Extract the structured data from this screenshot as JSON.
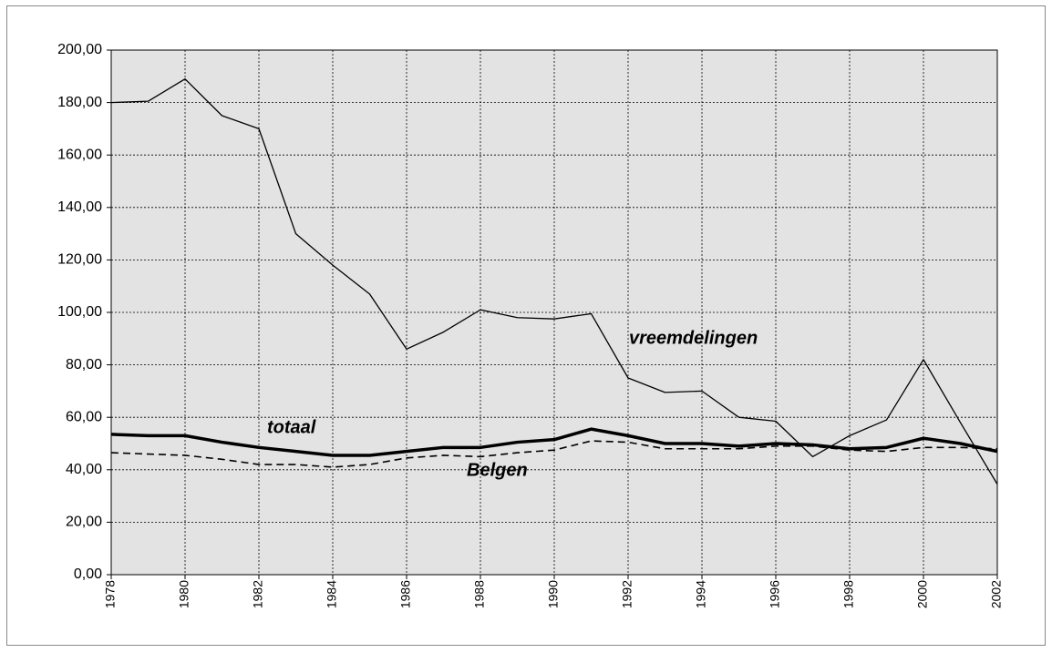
{
  "chart_data": {
    "type": "line",
    "x": [
      1978,
      1979,
      1980,
      1981,
      1982,
      1983,
      1984,
      1985,
      1986,
      1987,
      1988,
      1989,
      1990,
      1991,
      1992,
      1993,
      1994,
      1995,
      1996,
      1997,
      1998,
      1999,
      2000,
      2001,
      2002
    ],
    "xlim": [
      1978,
      2002
    ],
    "xticks": [
      1978,
      1980,
      1982,
      1984,
      1986,
      1988,
      1990,
      1992,
      1994,
      1996,
      1998,
      2000,
      2002
    ],
    "ylim": [
      0,
      200
    ],
    "yticks": [
      {
        "value": 0,
        "label": "0,00"
      },
      {
        "value": 20,
        "label": "20,00"
      },
      {
        "value": 40,
        "label": "40,00"
      },
      {
        "value": 60,
        "label": "60,00"
      },
      {
        "value": 80,
        "label": "80,00"
      },
      {
        "value": 100,
        "label": "100,00"
      },
      {
        "value": 120,
        "label": "120,00"
      },
      {
        "value": 140,
        "label": "140,00"
      },
      {
        "value": 160,
        "label": "160,00"
      },
      {
        "value": 180,
        "label": "180,00"
      },
      {
        "value": 200,
        "label": "200,00"
      }
    ],
    "grid": true,
    "series": [
      {
        "name": "vreemdelingen",
        "color": "#000000",
        "style": "thin",
        "values": [
          180,
          180.5,
          189,
          175,
          170,
          130,
          118,
          107,
          86,
          92.5,
          101,
          98,
          97.5,
          99.5,
          75,
          69.5,
          70,
          60,
          58.5,
          45,
          53,
          59,
          82,
          58,
          34.5
        ]
      },
      {
        "name": "totaal",
        "color": "#000000",
        "style": "thick",
        "values": [
          53.5,
          53,
          53,
          50.5,
          48.5,
          47,
          45.5,
          45.5,
          47,
          48.5,
          48.5,
          50.5,
          51.5,
          55.5,
          53,
          50,
          50,
          49,
          50,
          49.5,
          48,
          48.5,
          52,
          50,
          47
        ]
      },
      {
        "name": "Belgen",
        "color": "#000000",
        "style": "dashed",
        "values": [
          46.5,
          46,
          45.5,
          44,
          42,
          42,
          41,
          42,
          44.5,
          45.5,
          45,
          46.5,
          47.5,
          51,
          50.5,
          48,
          48,
          48,
          49,
          49,
          47.5,
          47,
          48.5,
          48.5,
          48
        ]
      }
    ]
  }
}
